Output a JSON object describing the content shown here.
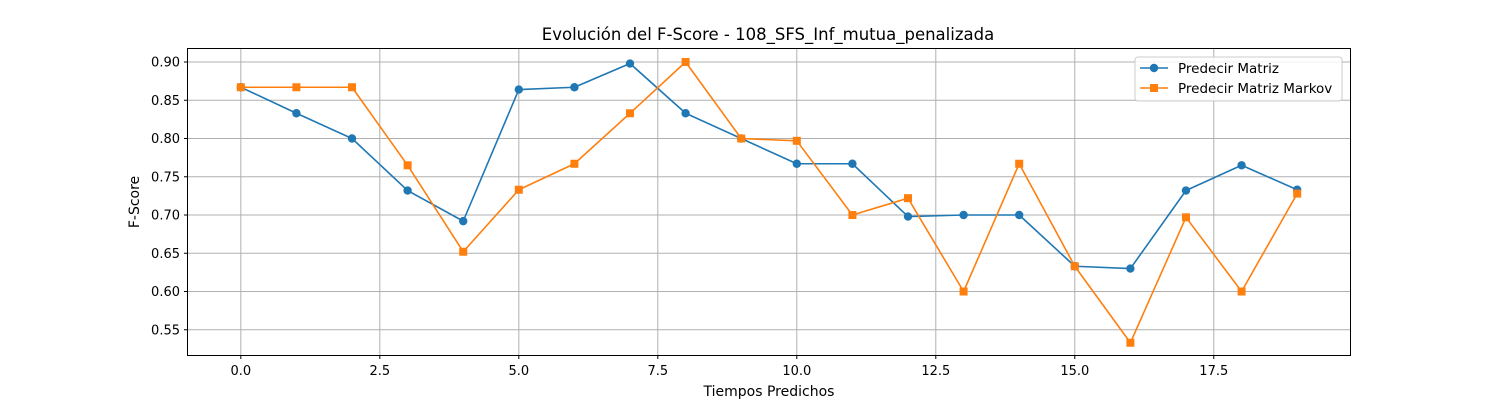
{
  "chart_data": {
    "type": "line",
    "title": "Evolución del F-Score - 108_SFS_Inf_mutua_penalizada",
    "xlabel": "Tiempos Predichos",
    "ylabel": "F-Score",
    "xlim": [
      -0.95,
      19.95
    ],
    "ylim": [
      0.517,
      0.917
    ],
    "xticks": [
      0.0,
      2.5,
      5.0,
      7.5,
      10.0,
      12.5,
      15.0,
      17.5
    ],
    "xtick_labels": [
      "0.0",
      "2.5",
      "5.0",
      "7.5",
      "10.0",
      "12.5",
      "15.0",
      "17.5"
    ],
    "yticks": [
      0.55,
      0.6,
      0.65,
      0.7,
      0.75,
      0.8,
      0.85,
      0.9
    ],
    "ytick_labels": [
      "0.55",
      "0.60",
      "0.65",
      "0.70",
      "0.75",
      "0.80",
      "0.85",
      "0.90"
    ],
    "grid": true,
    "legend_position": "top-right",
    "x": [
      0,
      1,
      2,
      3,
      4,
      5,
      6,
      7,
      8,
      9,
      10,
      11,
      12,
      13,
      14,
      15,
      16,
      17,
      18,
      19
    ],
    "series": [
      {
        "name": "Predecir Matriz",
        "color": "#1f77b4",
        "marker": "circle",
        "values": [
          0.867,
          0.833,
          0.8,
          0.732,
          0.692,
          0.864,
          0.867,
          0.898,
          0.833,
          0.8,
          0.767,
          0.767,
          0.698,
          0.7,
          0.7,
          0.633,
          0.63,
          0.732,
          0.765,
          0.733
        ]
      },
      {
        "name": "Predecir Matriz Markov",
        "color": "#ff7f0e",
        "marker": "square",
        "values": [
          0.867,
          0.867,
          0.867,
          0.765,
          0.652,
          0.733,
          0.767,
          0.833,
          0.9,
          0.8,
          0.797,
          0.7,
          0.722,
          0.6,
          0.767,
          0.633,
          0.533,
          0.697,
          0.6,
          0.728
        ]
      }
    ]
  }
}
